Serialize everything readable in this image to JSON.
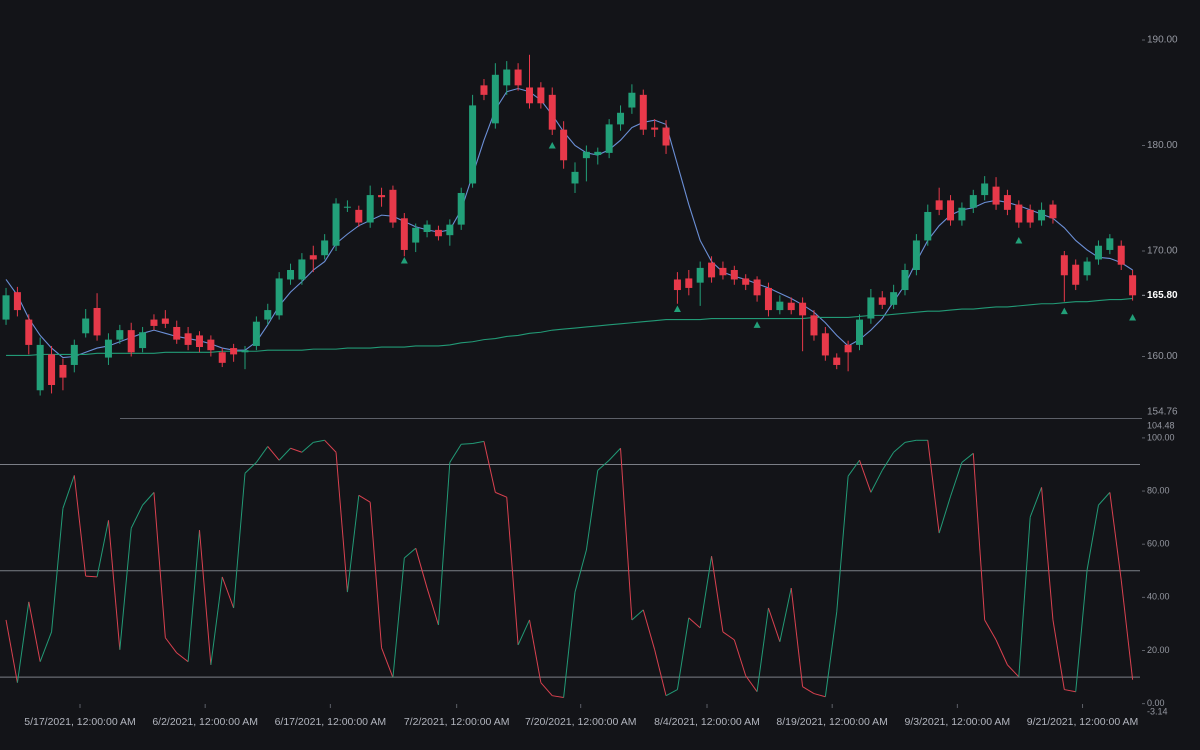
{
  "chart_data": {
    "type": "candlestick",
    "x": [
      0,
      1,
      2,
      3,
      4,
      5,
      6,
      7,
      8,
      9,
      10,
      11,
      12,
      13,
      14,
      15,
      16,
      17,
      18,
      19,
      20,
      21,
      22,
      23,
      24,
      25,
      26,
      27,
      28,
      29,
      30,
      31,
      32,
      33,
      34,
      35,
      36,
      37,
      38,
      39,
      40,
      41,
      42,
      43,
      44,
      45,
      46,
      47,
      48,
      49,
      50,
      51,
      52,
      53,
      54,
      55,
      56,
      57,
      58,
      59,
      60,
      61,
      62,
      63,
      64,
      65,
      66,
      67,
      68,
      69,
      70,
      71,
      72,
      73,
      74,
      75,
      76,
      77,
      78,
      79,
      80,
      81,
      82,
      83,
      84,
      85,
      86,
      87,
      88,
      89,
      90,
      91,
      92,
      93,
      94,
      95,
      96,
      97,
      98,
      99
    ],
    "open": [
      163.5,
      166.1,
      163.5,
      156.8,
      160.2,
      159.2,
      159.2,
      162.2,
      164.6,
      159.9,
      161.6,
      162.5,
      160.8,
      163.5,
      163.6,
      162.8,
      162.2,
      162.0,
      161.6,
      160.4,
      160.8,
      160.4,
      161.0,
      163.5,
      163.9,
      167.3,
      167.3,
      169.6,
      169.6,
      170.5,
      174.1,
      173.9,
      172.7,
      175.3,
      175.8,
      173.1,
      170.8,
      171.8,
      172.0,
      171.5,
      172.5,
      176.4,
      185.7,
      182.1,
      185.7,
      187.2,
      185.5,
      185.5,
      184.8,
      181.5,
      176.4,
      178.8,
      179.1,
      179.3,
      182.0,
      183.6,
      184.8,
      181.7,
      181.7,
      167.3,
      167.4,
      167.0,
      168.9,
      168.4,
      168.2,
      167.4,
      167.3,
      166.5,
      164.4,
      165.1,
      165.1,
      163.9,
      162.2,
      159.9,
      161.1,
      161.1,
      163.6,
      165.6,
      164.9,
      166.3,
      168.2,
      171.0,
      174.8,
      174.8,
      172.9,
      174.1,
      175.3,
      176.1,
      175.3,
      174.4,
      173.9,
      172.9,
      174.4,
      169.6,
      168.7,
      167.7,
      169.2,
      170.1,
      170.5,
      167.7
    ],
    "high": [
      166.5,
      166.6,
      164.0,
      161.8,
      161.0,
      159.8,
      161.6,
      164.5,
      166.0,
      162.2,
      163.0,
      163.2,
      162.8,
      164.0,
      164.4,
      163.4,
      162.8,
      162.4,
      162.0,
      160.8,
      161.2,
      161.0,
      163.8,
      165.0,
      168.0,
      168.8,
      169.8,
      170.5,
      171.6,
      175.0,
      174.8,
      174.3,
      176.2,
      176.0,
      176.2,
      173.6,
      172.6,
      172.9,
      172.4,
      173.0,
      176.0,
      184.8,
      186.3,
      187.8,
      188.0,
      187.8,
      188.6,
      186.0,
      185.5,
      182.3,
      178.4,
      180.0,
      179.8,
      182.5,
      183.8,
      185.8,
      185.3,
      182.5,
      182.4,
      168.0,
      168.2,
      169.0,
      169.5,
      169.0,
      168.6,
      167.8,
      167.6,
      167.0,
      165.8,
      165.6,
      165.6,
      164.4,
      162.8,
      160.3,
      161.5,
      164.0,
      166.4,
      166.2,
      166.8,
      168.8,
      171.6,
      174.4,
      176.0,
      175.3,
      174.6,
      175.8,
      177.1,
      177.0,
      175.8,
      174.8,
      174.4,
      174.6,
      174.8,
      170.0,
      169.2,
      169.4,
      171.0,
      171.6,
      171.0,
      168.2
    ],
    "low": [
      163.0,
      163.8,
      160.2,
      156.3,
      156.5,
      156.8,
      158.5,
      161.8,
      161.5,
      159.2,
      161.2,
      160.0,
      160.4,
      162.5,
      162.7,
      161.2,
      160.6,
      160.4,
      160.0,
      159.0,
      159.5,
      158.8,
      160.6,
      163.0,
      163.5,
      166.8,
      166.8,
      168.0,
      169.2,
      170.0,
      173.7,
      172.3,
      172.2,
      174.2,
      172.2,
      169.5,
      169.9,
      171.3,
      171.0,
      170.5,
      172.0,
      176.0,
      184.3,
      181.6,
      184.8,
      185.2,
      183.5,
      183.5,
      181.0,
      177.8,
      175.5,
      176.6,
      178.2,
      178.8,
      181.4,
      183.0,
      181.0,
      180.8,
      179.2,
      165.0,
      165.8,
      164.8,
      167.0,
      167.3,
      166.8,
      166.3,
      165.2,
      163.8,
      164.0,
      164.0,
      160.5,
      161.5,
      159.6,
      158.8,
      158.6,
      160.6,
      163.1,
      164.5,
      164.5,
      165.8,
      167.7,
      170.5,
      173.4,
      172.4,
      172.4,
      173.6,
      174.8,
      173.9,
      173.4,
      172.2,
      172.2,
      172.4,
      172.6,
      165.2,
      166.3,
      167.2,
      168.7,
      169.7,
      168.2,
      165.3
    ],
    "close": [
      165.8,
      164.4,
      161.1,
      161.1,
      157.3,
      158.0,
      161.1,
      163.6,
      162.0,
      161.6,
      162.5,
      160.4,
      162.3,
      162.9,
      163.1,
      161.6,
      161.1,
      160.9,
      160.6,
      159.4,
      160.2,
      160.6,
      163.3,
      164.4,
      167.4,
      168.2,
      169.2,
      169.2,
      171.0,
      174.5,
      174.2,
      172.7,
      175.3,
      175.1,
      172.7,
      170.1,
      172.2,
      172.5,
      171.4,
      172.5,
      175.5,
      183.8,
      184.8,
      186.7,
      187.2,
      185.7,
      184.0,
      184.0,
      181.5,
      178.6,
      177.5,
      179.4,
      179.4,
      182.0,
      183.1,
      185.0,
      181.5,
      181.5,
      180.0,
      166.3,
      166.5,
      168.4,
      167.5,
      167.7,
      167.3,
      166.8,
      165.8,
      164.4,
      165.2,
      164.4,
      163.9,
      162.0,
      160.1,
      159.2,
      160.4,
      163.5,
      165.6,
      164.9,
      166.1,
      168.2,
      171.0,
      173.7,
      173.9,
      172.9,
      174.1,
      175.3,
      176.4,
      174.4,
      173.9,
      172.7,
      172.7,
      173.9,
      173.1,
      167.7,
      166.8,
      169.0,
      170.5,
      171.2,
      168.7,
      165.8
    ],
    "up_color": "#22a079",
    "down_color": "#e8394a",
    "series": [
      {
        "color": "#6b8fd6",
        "values": [
          167.3,
          165.8,
          163.6,
          162.0,
          160.8,
          159.9,
          160.0,
          160.4,
          160.8,
          161.0,
          161.4,
          161.8,
          162.2,
          162.5,
          162.2,
          161.9,
          161.7,
          161.5,
          161.2,
          160.8,
          160.6,
          160.6,
          161.4,
          163.0,
          164.8,
          166.1,
          167.1,
          168.2,
          169.0,
          170.7,
          171.6,
          172.4,
          172.9,
          173.4,
          173.3,
          172.8,
          172.3,
          172.0,
          171.8,
          172.0,
          173.9,
          177.2,
          180.5,
          183.4,
          185.1,
          185.4,
          185.1,
          184.3,
          182.9,
          181.3,
          180.0,
          179.3,
          179.1,
          179.6,
          180.5,
          181.7,
          182.2,
          182.4,
          182.0,
          178.2,
          174.4,
          171.0,
          169.0,
          168.0,
          167.6,
          167.3,
          166.9,
          166.5,
          166.0,
          165.5,
          164.9,
          164.2,
          163.2,
          162.0,
          161.0,
          161.6,
          162.5,
          163.6,
          165.2,
          166.8,
          169.0,
          171.0,
          172.4,
          173.4,
          173.9,
          174.1,
          174.6,
          174.8,
          174.6,
          174.3,
          173.9,
          173.5,
          173.1,
          172.2,
          171.0,
          170.1,
          169.4,
          169.3,
          168.9,
          168.2
        ]
      },
      {
        "color": "#229a76",
        "values": [
          160.1,
          160.1,
          160.1,
          160.2,
          160.2,
          160.2,
          160.2,
          160.2,
          160.3,
          160.3,
          160.3,
          160.3,
          160.3,
          160.3,
          160.4,
          160.4,
          160.4,
          160.4,
          160.4,
          160.5,
          160.5,
          160.5,
          160.5,
          160.6,
          160.6,
          160.6,
          160.6,
          160.7,
          160.7,
          160.7,
          160.8,
          160.8,
          160.8,
          160.9,
          160.9,
          160.9,
          161.0,
          161.0,
          161.0,
          161.1,
          161.3,
          161.4,
          161.6,
          161.7,
          161.9,
          162.0,
          162.2,
          162.3,
          162.5,
          162.6,
          162.7,
          162.8,
          162.9,
          163.0,
          163.1,
          163.2,
          163.3,
          163.4,
          163.5,
          163.5,
          163.5,
          163.5,
          163.6,
          163.6,
          163.6,
          163.6,
          163.6,
          163.6,
          163.6,
          163.6,
          163.6,
          163.7,
          163.7,
          163.7,
          163.7,
          163.8,
          163.9,
          163.9,
          164.0,
          164.1,
          164.2,
          164.3,
          164.3,
          164.4,
          164.5,
          164.5,
          164.6,
          164.7,
          164.7,
          164.8,
          164.9,
          165.0,
          165.0,
          165.1,
          165.2,
          165.2,
          165.3,
          165.4,
          165.4,
          165.5
        ]
      }
    ],
    "markers": {
      "color": "#22a079",
      "x": [
        35,
        48,
        59,
        66,
        89,
        93,
        99
      ],
      "values": [
        169.1,
        180.0,
        164.5,
        163.0,
        171.0,
        164.3,
        163.7
      ]
    },
    "last_value": {
      "value": 165.8,
      "label": "165.80"
    },
    "ylim": [
      154.76,
      193.79
    ],
    "yticks": [
      {
        "value": 160,
        "label": "160.00"
      },
      {
        "value": 170,
        "label": "170.00"
      },
      {
        "value": 180,
        "label": "180.00"
      },
      {
        "value": 190,
        "label": "190.00"
      }
    ],
    "xlim": [
      -0.53,
      99.65
    ],
    "xticks": [
      {
        "value": 6.5,
        "label": "5/17/2021, 12:00:00 AM"
      },
      {
        "value": 17.5,
        "label": "6/2/2021, 12:00:00 AM"
      },
      {
        "value": 28.5,
        "label": "6/17/2021, 12:00:00 AM"
      },
      {
        "value": 39.6,
        "label": "7/2/2021, 12:00:00 AM"
      },
      {
        "value": 50.5,
        "label": "7/20/2021, 12:00:00 AM"
      },
      {
        "value": 61.6,
        "label": "8/4/2021, 12:00:00 AM"
      },
      {
        "value": 72.6,
        "label": "8/19/2021, 12:00:00 AM"
      },
      {
        "value": 83.6,
        "label": "9/3/2021, 12:00:00 AM"
      },
      {
        "value": 94.6,
        "label": "9/21/2021, 12:00:00 AM"
      }
    ],
    "oscillator": {
      "type": "line",
      "values": [
        31.5,
        7.9,
        38.3,
        15.8,
        27,
        73.5,
        85.9,
        48,
        47.7,
        69,
        20.3,
        66,
        74.7,
        79.5,
        24.8,
        19.1,
        15.8,
        65.3,
        14.6,
        47.7,
        36,
        86.7,
        90.8,
        96.8,
        91.6,
        96.1,
        94.6,
        98.3,
        99.1,
        94.6,
        42,
        78.4,
        75.8,
        21,
        9.8,
        54.8,
        58.5,
        43.5,
        29.6,
        90.8,
        97.6,
        97.9,
        98.7,
        79.5,
        77.7,
        22.1,
        31.5,
        7.9,
        3,
        2.3,
        42,
        57.8,
        87.8,
        91.6,
        96.1,
        31.5,
        35.3,
        20.3,
        3,
        5.3,
        32.3,
        28.5,
        55.5,
        27,
        24,
        10.5,
        4.5,
        36,
        23.3,
        43.5,
        6.4,
        3.8,
        2.6,
        34.5,
        85.6,
        91.6,
        79.5,
        87.8,
        94.6,
        98.3,
        99.1,
        99.1,
        64.2,
        78,
        90.8,
        94.2,
        31.5,
        24,
        14.6,
        10.1,
        70.2,
        81.4,
        31.5,
        5.3,
        4.5,
        50.3,
        74.7,
        79.5,
        46.5,
        9
      ],
      "up_color": "#229a76",
      "down_color": "#d9414f",
      "levels": [
        90,
        50,
        10
      ],
      "level_color": "#7b7e86",
      "ylim": [
        -3.14,
        104.48
      ],
      "yticks": [
        {
          "value": 0,
          "label": "0.00"
        },
        {
          "value": 20,
          "label": "20.00"
        },
        {
          "value": 40,
          "label": "40.00"
        },
        {
          "value": 60,
          "label": "60.00"
        },
        {
          "value": 80,
          "label": "80.00"
        },
        {
          "value": 100,
          "label": "100.00"
        }
      ]
    }
  }
}
